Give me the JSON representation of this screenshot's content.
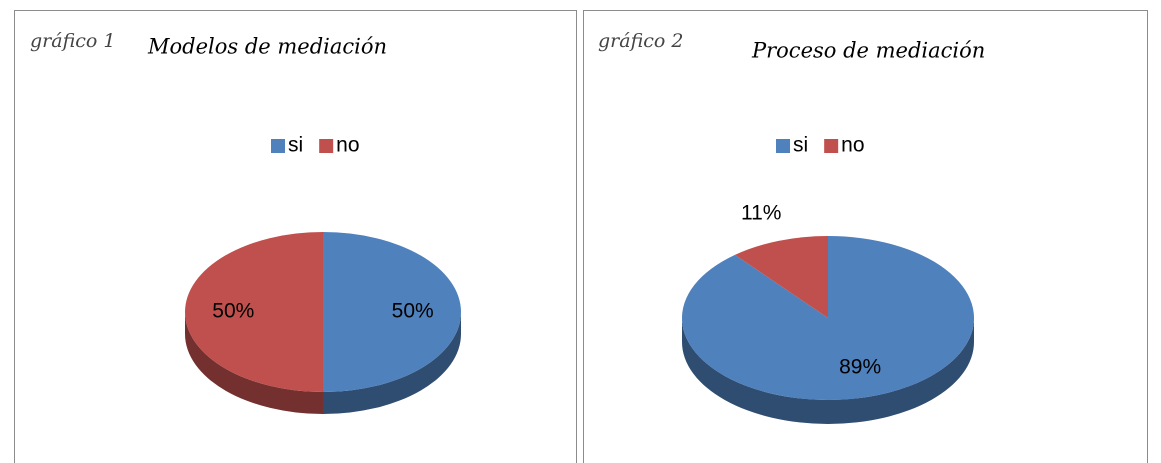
{
  "chart_data": [
    {
      "type": "pie",
      "annotation": "gráfico 1",
      "title": "Modelos de mediación",
      "categories": [
        "si",
        "no"
      ],
      "values": [
        50,
        50
      ],
      "value_labels": [
        "50%",
        "50%"
      ],
      "colors": [
        "#4f81bd",
        "#c0504d"
      ],
      "legend": "top"
    },
    {
      "type": "pie",
      "annotation": "gráfico 2",
      "title": "Proceso de mediación",
      "categories": [
        "si",
        "no"
      ],
      "values": [
        89,
        11
      ],
      "value_labels": [
        "89%",
        "11%"
      ],
      "colors": [
        "#4f81bd",
        "#c0504d"
      ],
      "legend": "top"
    }
  ]
}
